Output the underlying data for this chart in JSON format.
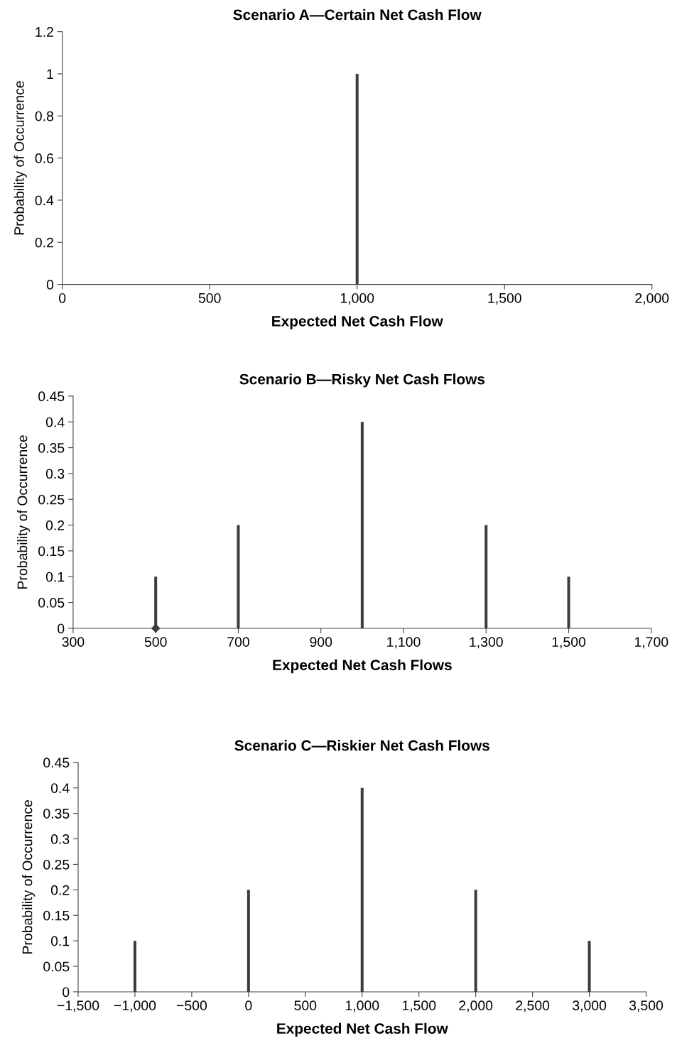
{
  "chart_data": [
    {
      "type": "bar",
      "title": "Scenario A—Certain Net Cash Flow",
      "xlabel": "Expected Net Cash Flow",
      "ylabel": "Probability of Occurrence",
      "x": [
        1000
      ],
      "values": [
        1
      ],
      "color": "#3c3c3c",
      "xlim": [
        0,
        2000
      ],
      "xticks": [
        0,
        500,
        {
          "value": 1000,
          "label": "1,000"
        },
        {
          "value": 1500,
          "label": "1,500"
        },
        {
          "value": 2000,
          "label": "2,000"
        }
      ],
      "ylim": [
        0,
        1.2
      ],
      "yticks": [
        0,
        0.2,
        0.4,
        0.6,
        0.8,
        1,
        1.2
      ],
      "grid": false,
      "legend": false
    },
    {
      "type": "bar",
      "title": "Scenario B—Risky Net Cash Flows",
      "xlabel": "Expected Net Cash Flows",
      "ylabel": "Probability of Occurrence",
      "x": [
        500,
        700,
        1000,
        1300,
        1500
      ],
      "values": [
        0.1,
        0.2,
        0.4,
        0.2,
        0.1
      ],
      "color": "#3c3c3c",
      "series": [
        {
          "type": "scatter",
          "x": [
            500
          ],
          "values": [
            0
          ],
          "color": "#3c3c3c",
          "marker": "diamond"
        }
      ],
      "xlim": [
        300,
        1700
      ],
      "xticks": [
        300,
        500,
        700,
        900,
        {
          "value": 1100,
          "label": "1,100"
        },
        {
          "value": 1300,
          "label": "1,300"
        },
        {
          "value": 1500,
          "label": "1,500"
        },
        {
          "value": 1700,
          "label": "1,700"
        }
      ],
      "ylim": [
        0,
        0.45
      ],
      "yticks": [
        0,
        0.05,
        0.1,
        0.15,
        0.2,
        0.25,
        0.3,
        0.35,
        0.4,
        0.45
      ],
      "grid": false,
      "legend": false
    },
    {
      "type": "bar",
      "title": "Scenario C—Riskier Net Cash Flows",
      "xlabel": "Expected Net Cash Flow",
      "ylabel": "Probability of Occurrence",
      "x": [
        -1000,
        0,
        1000,
        2000,
        3000
      ],
      "values": [
        0.1,
        0.2,
        0.4,
        0.2,
        0.1
      ],
      "color": "#3c3c3c",
      "xlim": [
        -1500,
        3500
      ],
      "xticks": [
        {
          "value": -1500,
          "label": "−1,500"
        },
        {
          "value": -1000,
          "label": "−1,000"
        },
        {
          "value": -500,
          "label": "−500"
        },
        0,
        500,
        {
          "value": 1000,
          "label": "1,000"
        },
        {
          "value": 1500,
          "label": "1,500"
        },
        {
          "value": 2000,
          "label": "2,000"
        },
        {
          "value": 2500,
          "label": "2,500"
        },
        {
          "value": 3000,
          "label": "3,000"
        },
        {
          "value": 3500,
          "label": "3,500"
        }
      ],
      "ylim": [
        0,
        0.45
      ],
      "yticks": [
        0,
        0.05,
        0.1,
        0.15,
        0.2,
        0.25,
        0.3,
        0.35,
        0.4,
        0.45
      ],
      "grid": false,
      "legend": false
    }
  ]
}
